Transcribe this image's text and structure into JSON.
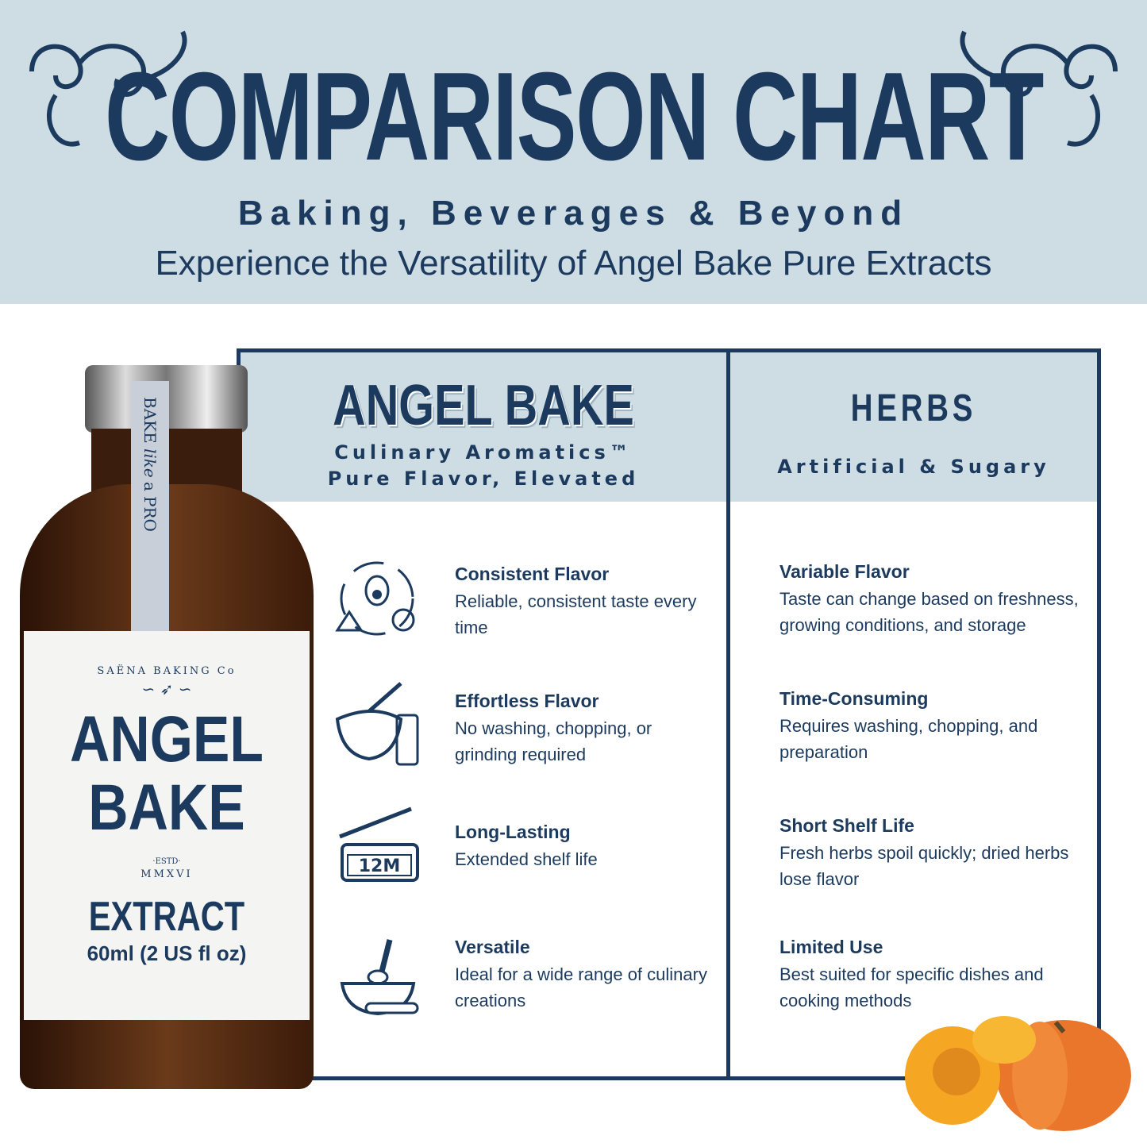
{
  "header": {
    "title": "COMPARISON CHART",
    "subtitle": "Baking, Beverages & Beyond",
    "tagline": "Experience the Versatility of Angel Bake Pure Extracts"
  },
  "colors": {
    "navy": "#1c3a5e",
    "light_blue": "#cedde4"
  },
  "product": {
    "tag_text": [
      "BAKE",
      "like",
      "a",
      "PRO"
    ],
    "maker": "SAËNA BAKING Co",
    "name_line1": "ANGEL",
    "name_line2": "BAKE",
    "estd": "·ESTD·",
    "year": "MMXVI",
    "type": "EXTRACT",
    "volume": "60ml (2 US fl oz)"
  },
  "columns": [
    {
      "title": "ANGEL BAKE",
      "tagline1": "Culinary Aromatics™",
      "tagline2": "Pure Flavor, Elevated",
      "items": [
        {
          "icon": "fruit-cycle-icon",
          "heading": "Consistent Flavor",
          "text": "Reliable, consistent taste every time"
        },
        {
          "icon": "mixing-bowl-dropper-icon",
          "heading": "Effortless Flavor",
          "text": "No washing, chopping, or grinding required"
        },
        {
          "icon": "jar-12m-icon",
          "icon_label": "12M",
          "heading": "Long-Lasting",
          "text": "Extended shelf life"
        },
        {
          "icon": "whisk-bowl-icon",
          "heading": "Versatile",
          "text": "Ideal for a wide range of culinary creations"
        }
      ]
    },
    {
      "title": "HERBS",
      "tagline1": "Artificial & Sugary",
      "items": [
        {
          "heading": "Variable Flavor",
          "text": "Taste can change based on freshness, growing conditions, and storage"
        },
        {
          "heading": "Time-Consuming",
          "text": "Requires washing, chopping, and preparation"
        },
        {
          "heading": "Short Shelf Life",
          "text": "Fresh herbs spoil quickly; dried herbs lose flavor"
        },
        {
          "heading": "Limited Use",
          "text": "Best suited for specific dishes and cooking methods"
        }
      ]
    }
  ]
}
